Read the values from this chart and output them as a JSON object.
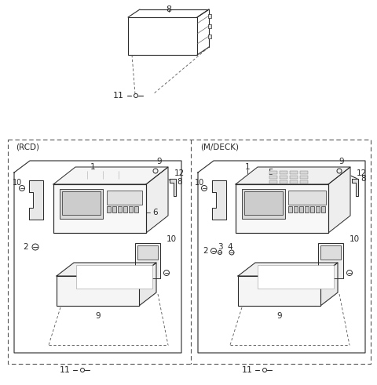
{
  "bg_color": "#ffffff",
  "line_color": "#2a2a2a",
  "dashed_color": "#555555",
  "fig_width": 4.8,
  "fig_height": 4.91,
  "rcd_label": "(RCD)",
  "mdeck_label": "(M/DECK)"
}
